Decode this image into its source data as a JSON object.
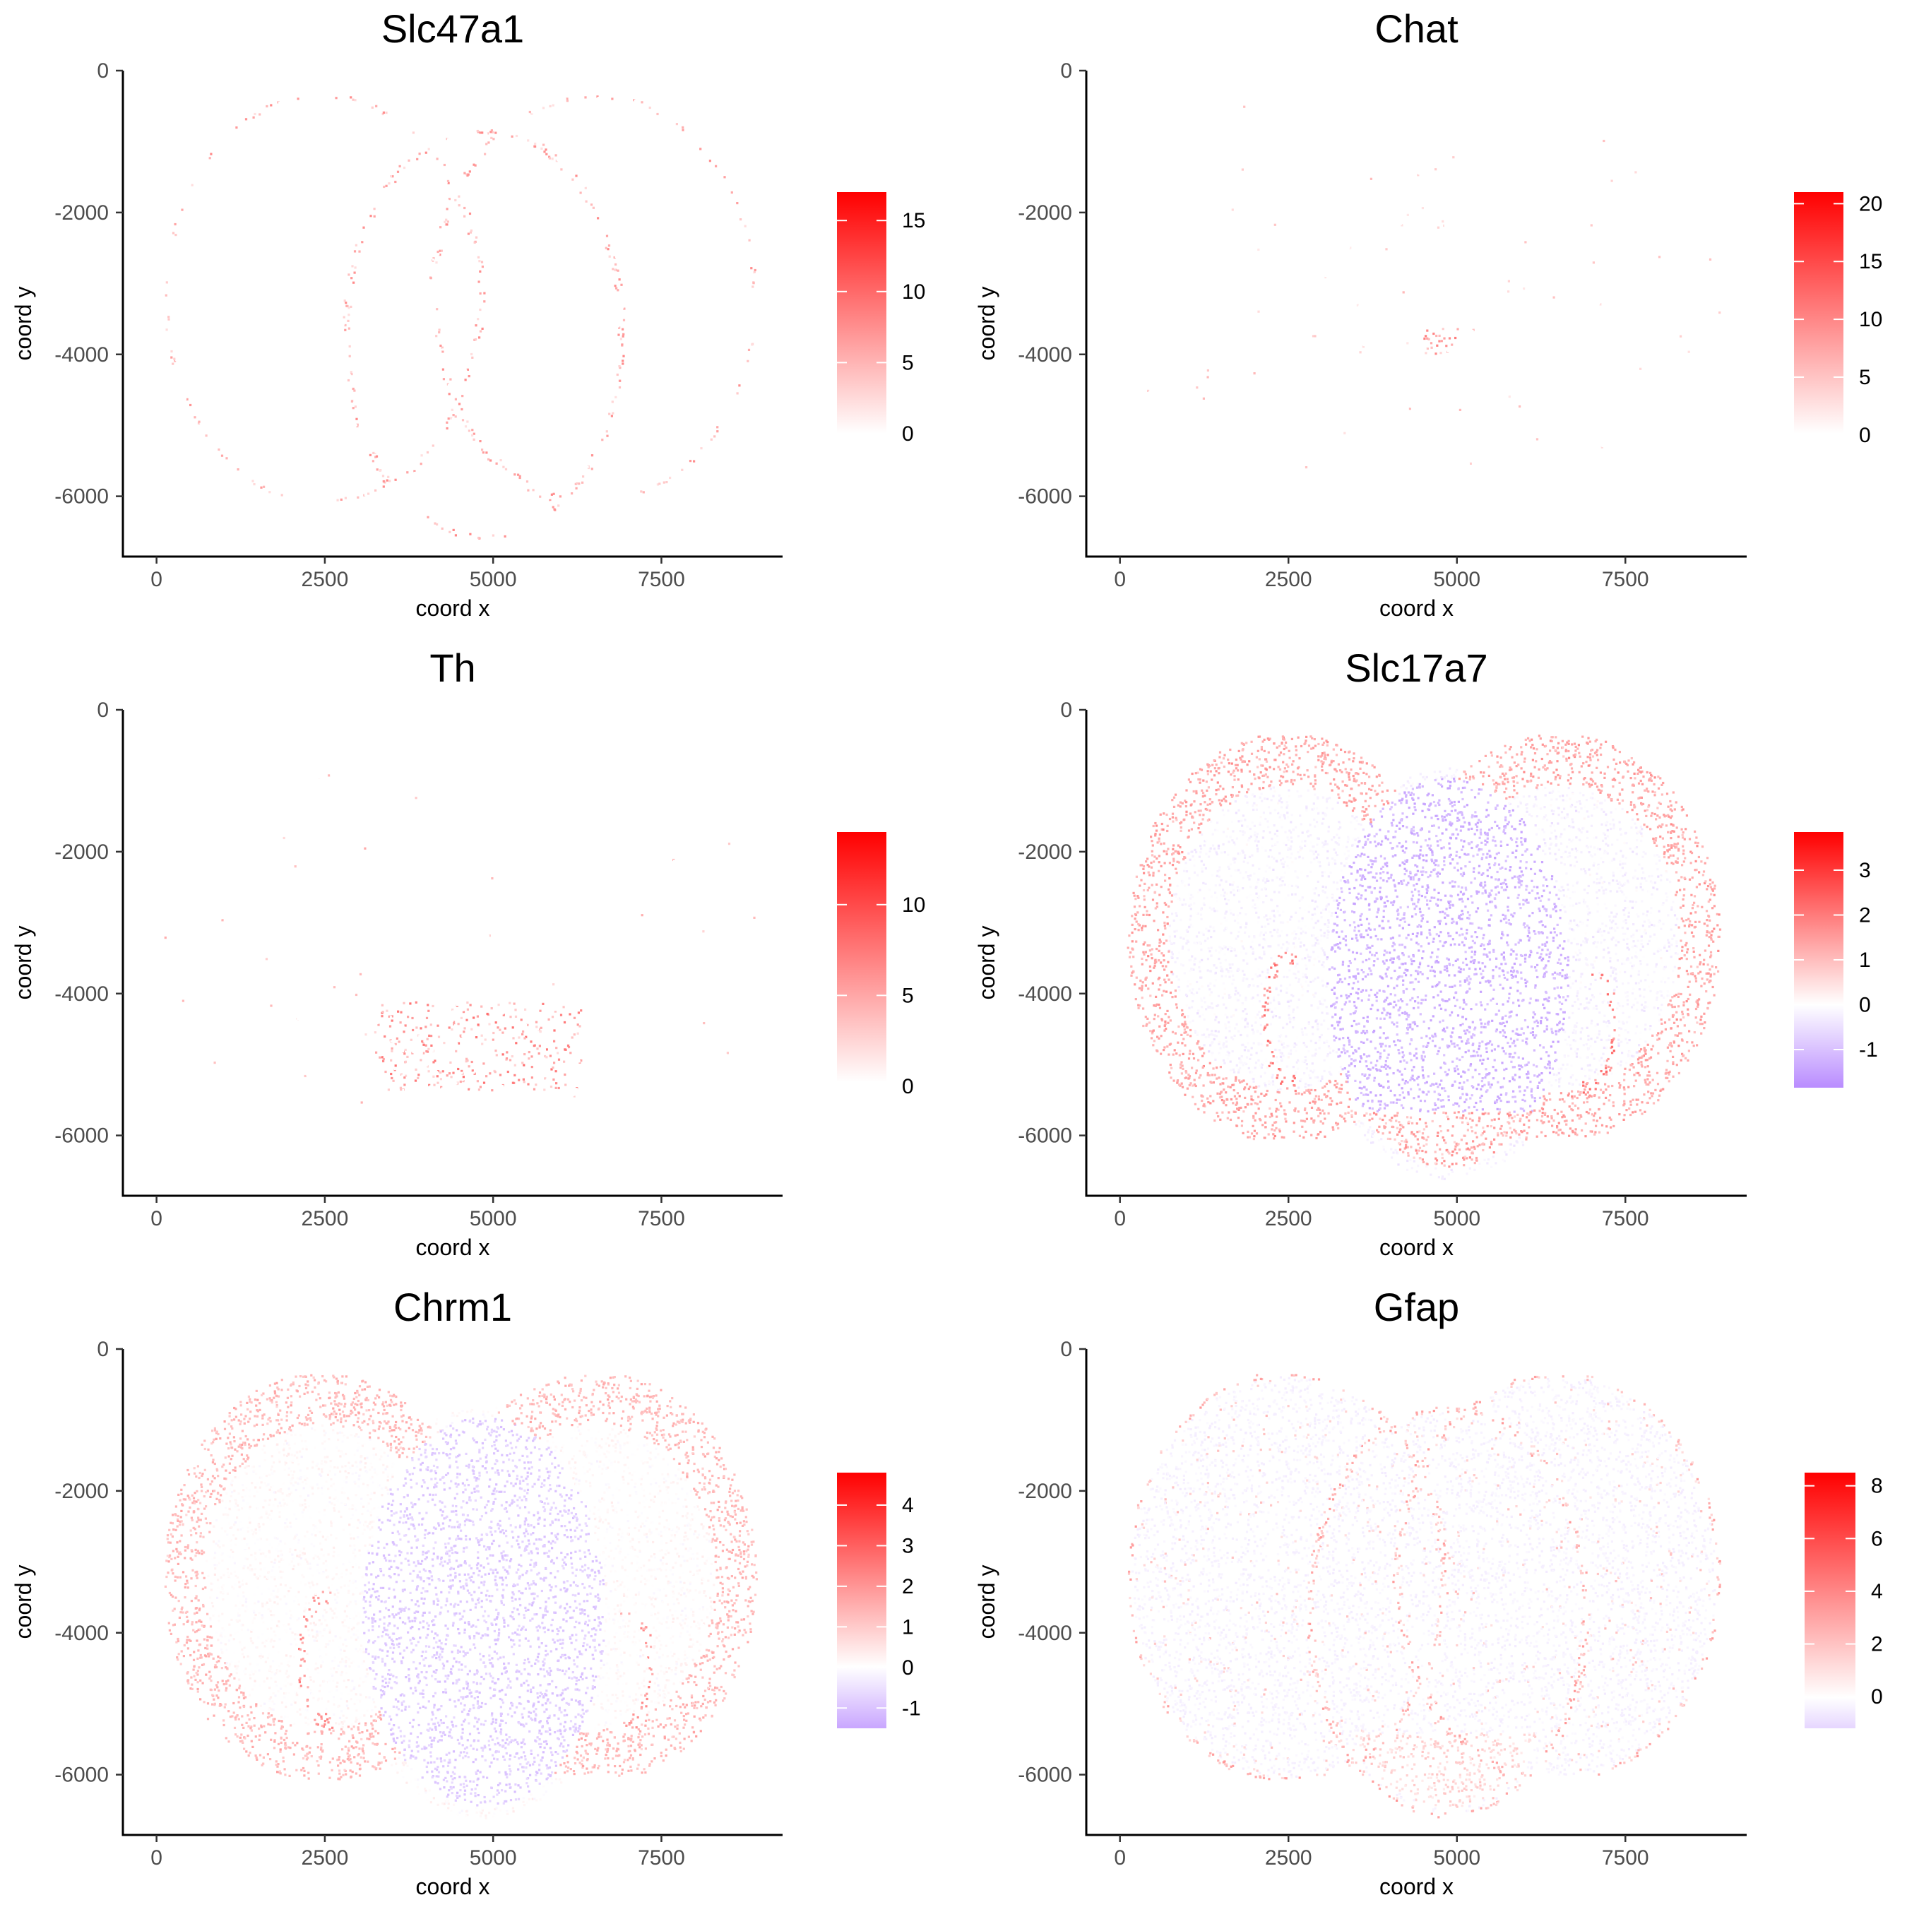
{
  "figure_domain": "Chart",
  "chart_data": [
    {
      "type": "scatter",
      "title": "Slc47a1",
      "xlabel": "coord x",
      "ylabel": "coord y",
      "xlim": [
        -500,
        9300
      ],
      "ylim": [
        -6850,
        0
      ],
      "xticks": [
        "0",
        "2500",
        "5000",
        "7500"
      ],
      "yticks": [
        "0",
        "-2000",
        "-4000",
        "-6000"
      ],
      "legend": {
        "min": -0.5,
        "max": 17,
        "ticks": [
          0,
          5,
          10,
          15
        ],
        "tick_labels": [
          "0",
          "5",
          "10",
          "15"
        ],
        "colors": [
          "#ffffff",
          "#ffffff",
          "#ff0000"
        ],
        "stops": [
          0,
          0.03,
          1
        ],
        "placement": "right"
      },
      "pattern": "slc47a1"
    },
    {
      "type": "scatter",
      "title": "Chat",
      "xlabel": "coord x",
      "ylabel": "coord y",
      "xlim": [
        -500,
        9300
      ],
      "ylim": [
        -6850,
        0
      ],
      "xticks": [
        "0",
        "2500",
        "5000",
        "7500"
      ],
      "yticks": [
        "0",
        "-2000",
        "-4000",
        "-6000"
      ],
      "legend": {
        "min": -0.5,
        "max": 21,
        "ticks": [
          0,
          5,
          10,
          15,
          20
        ],
        "tick_labels": [
          "0",
          "5",
          "10",
          "15",
          "20"
        ],
        "colors": [
          "#ffffff",
          "#ffffff",
          "#ff0000"
        ],
        "stops": [
          0,
          0.03,
          1
        ],
        "placement": "right"
      },
      "pattern": "chat"
    },
    {
      "type": "scatter",
      "title": "Th",
      "xlabel": "coord x",
      "ylabel": "coord y",
      "xlim": [
        -500,
        9300
      ],
      "ylim": [
        -6850,
        0
      ],
      "xticks": [
        "0",
        "2500",
        "5000",
        "7500"
      ],
      "yticks": [
        "0",
        "-2000",
        "-4000",
        "-6000"
      ],
      "legend": {
        "min": -0.2,
        "max": 14,
        "ticks": [
          0,
          5,
          10
        ],
        "tick_labels": [
          "0",
          "5",
          "10"
        ],
        "colors": [
          "#ffffff",
          "#ffffff",
          "#ff0000"
        ],
        "stops": [
          0,
          0.03,
          1
        ],
        "placement": "right"
      },
      "pattern": "th"
    },
    {
      "type": "scatter",
      "title": "Slc17a7",
      "xlabel": "coord x",
      "ylabel": "coord y",
      "xlim": [
        -500,
        9300
      ],
      "ylim": [
        -6850,
        0
      ],
      "xticks": [
        "0",
        "2500",
        "5000",
        "7500"
      ],
      "yticks": [
        "0",
        "-2000",
        "-4000",
        "-6000"
      ],
      "legend": {
        "min": -1.85,
        "max": 3.85,
        "ticks": [
          -1,
          0,
          1,
          2,
          3
        ],
        "tick_labels": [
          "-1",
          "0",
          "1",
          "2",
          "3"
        ],
        "colors": [
          "#b98cff",
          "#ffffff",
          "#ff0000"
        ],
        "stops": [
          0,
          0.325,
          1
        ],
        "placement": "right"
      },
      "pattern": "slc17a7"
    },
    {
      "type": "scatter",
      "title": "Chrm1",
      "xlabel": "coord x",
      "ylabel": "coord y",
      "xlim": [
        -500,
        9300
      ],
      "ylim": [
        -6850,
        0
      ],
      "xticks": [
        "0",
        "2500",
        "5000",
        "7500"
      ],
      "yticks": [
        "0",
        "-2000",
        "-4000",
        "-6000"
      ],
      "legend": {
        "min": -1.5,
        "max": 4.8,
        "ticks": [
          -1,
          0,
          1,
          2,
          3,
          4
        ],
        "tick_labels": [
          "-1",
          "0",
          "1",
          "2",
          "3",
          "4"
        ],
        "colors": [
          "#c9a6ff",
          "#ffffff",
          "#ff0000"
        ],
        "stops": [
          0,
          0.24,
          1
        ],
        "placement": "right"
      },
      "pattern": "chrm1"
    },
    {
      "type": "scatter",
      "title": "Gfap",
      "xlabel": "coord x",
      "ylabel": "coord y",
      "xlim": [
        -500,
        9300
      ],
      "ylim": [
        -6850,
        0
      ],
      "xticks": [
        "0",
        "2500",
        "5000",
        "7500"
      ],
      "yticks": [
        "0",
        "-2000",
        "-4000",
        "-6000"
      ],
      "legend": {
        "min": -1.2,
        "max": 8.5,
        "ticks": [
          0,
          2,
          4,
          6,
          8
        ],
        "tick_labels": [
          "0",
          "2",
          "4",
          "6",
          "8"
        ],
        "colors": [
          "#e6d6ff",
          "#ffffff",
          "#ff0000"
        ],
        "stops": [
          0,
          0.12,
          1
        ],
        "placement": "right"
      },
      "pattern": "gfap"
    }
  ]
}
